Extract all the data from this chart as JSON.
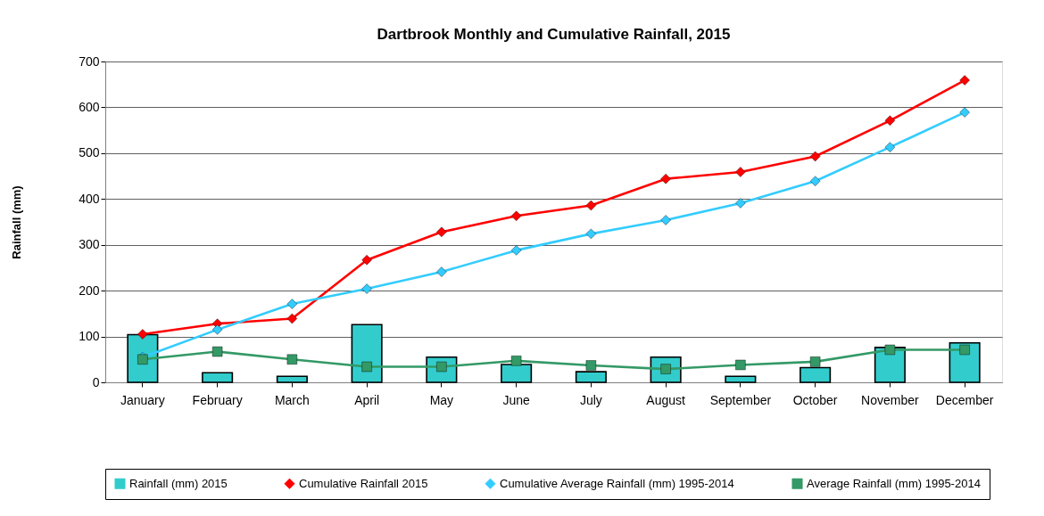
{
  "chart_data": {
    "type": "bar",
    "title": "Dartbrook Monthly and Cumulative Rainfall, 2015",
    "ylabel": "Rainfall (mm)",
    "categories": [
      "January",
      "February",
      "March",
      "April",
      "May",
      "June",
      "July",
      "August",
      "September",
      "October",
      "November",
      "December"
    ],
    "series": [
      {
        "name": "Rainfall (mm) 2015",
        "color": "#33cccc",
        "values": [
          104,
          21,
          13,
          126,
          55,
          39,
          23,
          55,
          13,
          32,
          76,
          86
        ]
      },
      {
        "name": "Cumulative Rainfall 2015",
        "type": "line",
        "color": "#ff0000",
        "marker": "diamond",
        "values": [
          105,
          128,
          139,
          267,
          328,
          363,
          386,
          444,
          459,
          493,
          571,
          659
        ]
      },
      {
        "name": "Cumulative Average Rainfall (mm) 1995-2014",
        "type": "line",
        "color": "#33ccff",
        "marker": "diamond",
        "values": [
          55,
          115,
          171,
          204,
          241,
          288,
          324,
          354,
          391,
          439,
          513,
          589
        ]
      },
      {
        "name": "Average Rainfall (mm) 1995-2014",
        "type": "line",
        "color": "#339966",
        "marker": "square",
        "values": [
          50,
          67,
          50,
          34,
          34,
          47,
          37,
          29,
          38,
          45,
          71,
          71
        ]
      }
    ],
    "ylim": [
      0,
      700
    ],
    "yticks": [
      0,
      100,
      200,
      300,
      400,
      500,
      600,
      700
    ],
    "grid": "y",
    "legend": "bottom"
  }
}
